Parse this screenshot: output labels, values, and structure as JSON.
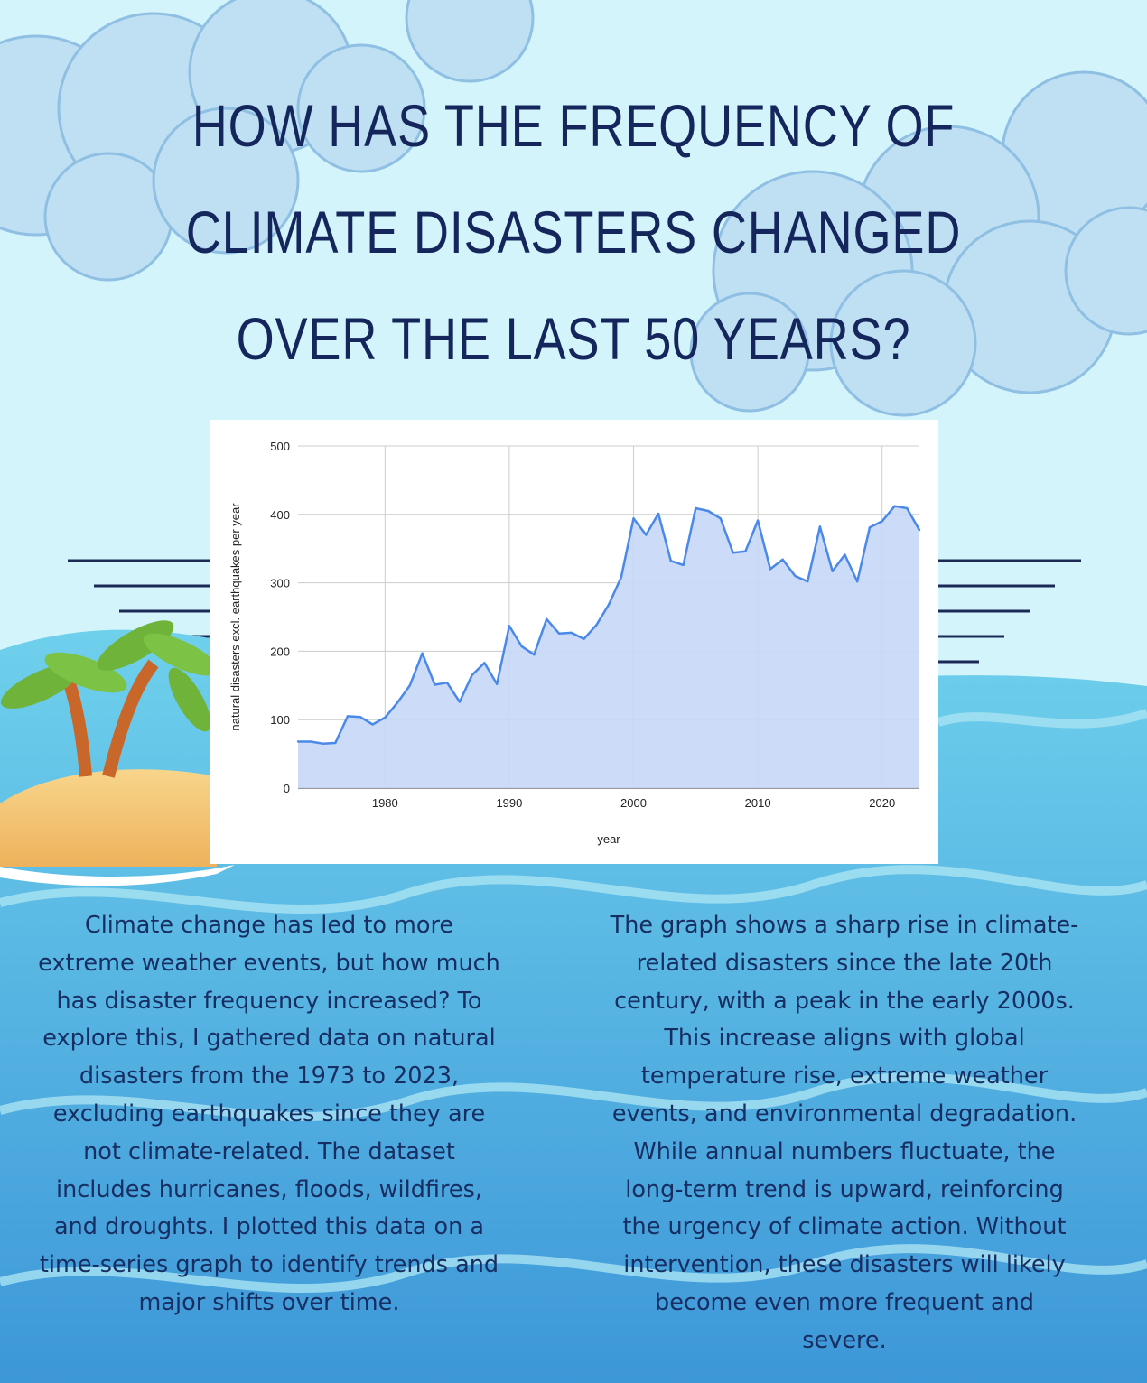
{
  "title_lines": [
    "HOW HAS THE FREQUENCY OF",
    "CLIMATE DISASTERS CHANGED",
    "OVER THE LAST 50 YEARS?"
  ],
  "paragraph_left_lines": [
    "Climate change has led to more",
    "extreme weather events, but how much",
    "has disaster frequency increased? To",
    "explore this, I gathered data on natural",
    "disasters from the 1973 to 2023,",
    "excluding earthquakes since they are",
    "not climate-related. The dataset",
    "includes hurricanes, floods, wildfires,",
    "and droughts. I plotted this data on a",
    "time-series graph to identify trends and",
    "major shifts over time."
  ],
  "paragraph_right_lines": [
    "The graph shows a sharp rise in climate-",
    "related disasters since the late 20th",
    "century, with a peak in the early 2000s.",
    "This increase aligns with global",
    "temperature rise, extreme weather",
    "events, and environmental degradation.",
    "While annual numbers fluctuate, the",
    "long-term trend is upward, reinforcing",
    "the urgency of climate action. Without",
    "intervention, these disasters will likely",
    "become even more frequent and",
    "severe."
  ],
  "colors": {
    "sky": "#d3f4fa",
    "ocean_light": "#5fc6e5",
    "ocean_dark": "#3a93d6",
    "sand": "#f3c373",
    "title": "#14265c",
    "text": "#172e62",
    "chart_line": "#4a89e8",
    "chart_fill": "#c6d8f7",
    "grid": "#cccccc"
  },
  "decor": {
    "clouds": "watercolor-clouds",
    "island": "palm-tree-island",
    "horizon_lines": "horizon-stripes"
  },
  "chart_data": {
    "type": "area",
    "xlabel": "year",
    "ylabel": "natural disasters excl. earthquakes per year",
    "xlim": [
      1973,
      2023
    ],
    "ylim": [
      0,
      500
    ],
    "x_ticks": [
      1980,
      1990,
      2000,
      2010,
      2020
    ],
    "y_ticks": [
      0,
      100,
      200,
      300,
      400,
      500
    ],
    "grid": true,
    "legend": "none",
    "x": [
      1973,
      1974,
      1975,
      1976,
      1977,
      1978,
      1979,
      1980,
      1981,
      1982,
      1983,
      1984,
      1985,
      1986,
      1987,
      1988,
      1989,
      1990,
      1991,
      1992,
      1993,
      1994,
      1995,
      1996,
      1997,
      1998,
      1999,
      2000,
      2001,
      2002,
      2003,
      2004,
      2005,
      2006,
      2007,
      2008,
      2009,
      2010,
      2011,
      2012,
      2013,
      2014,
      2015,
      2016,
      2017,
      2018,
      2019,
      2020,
      2021,
      2022,
      2023
    ],
    "y": [
      68,
      68,
      65,
      66,
      105,
      104,
      93,
      103,
      125,
      150,
      197,
      151,
      154,
      126,
      165,
      183,
      152,
      237,
      207,
      195,
      247,
      226,
      227,
      218,
      238,
      268,
      308,
      394,
      370,
      401,
      332,
      326,
      409,
      405,
      394,
      344,
      346,
      391,
      320,
      334,
      310,
      302,
      382,
      317,
      341,
      302,
      381,
      390,
      412,
      409,
      377
    ]
  }
}
